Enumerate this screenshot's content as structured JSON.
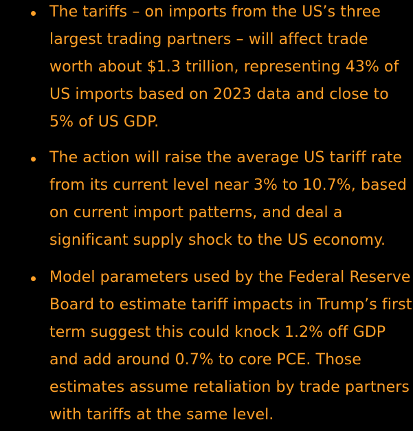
{
  "bullets": [
    {
      "text": "The tariffs – on imports from the US’s three largest trading partners – will affect trade worth about $1.3 trillion, representing 43% of US imports based on 2023 data and close to 5% of US GDP."
    },
    {
      "text": "The action will raise the average US tariff rate from its current level near 3% to 10.7%, based on current import patterns, and deal a significant supply shock to the US economy."
    },
    {
      "text": "Model parameters used by the Federal Reserve Board to estimate tariff impacts in Trump’s first term suggest this could knock 1.2% off GDP and add around 0.7% to core PCE. Those estimates assume retaliation by trade partners with tariffs at the same level."
    }
  ],
  "colors": {
    "background": "#000000",
    "text": "#FFA028"
  }
}
